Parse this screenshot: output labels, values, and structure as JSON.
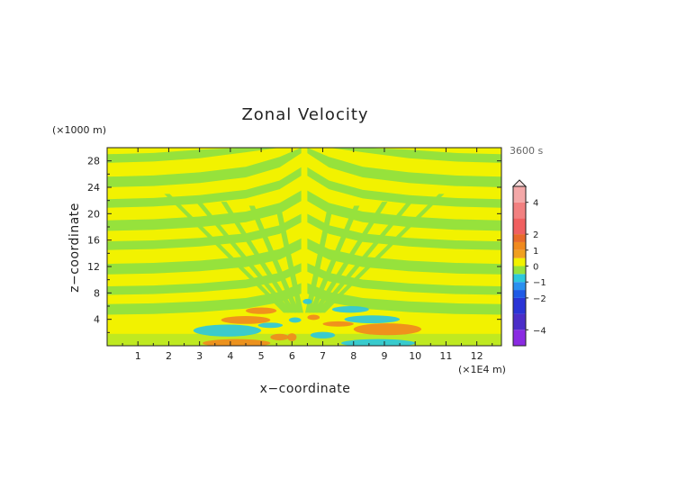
{
  "chart_data": {
    "type": "heatmap",
    "title": "Zonal Velocity",
    "xlabel": "x−coordinate",
    "ylabel": "z−coordinate",
    "x_unit": "(×1E4 m)",
    "y_unit": "(×1000 m)",
    "time_label": "3600 s",
    "xlim": [
      0,
      12.8
    ],
    "ylim": [
      0,
      30
    ],
    "x_ticks": [
      1,
      2,
      3,
      4,
      5,
      6,
      7,
      8,
      9,
      10,
      11,
      12
    ],
    "y_ticks": [
      4,
      8,
      12,
      16,
      20,
      24,
      28
    ],
    "colorbar": {
      "tick_labels": [
        "4",
        "2",
        "1",
        "0",
        "−1",
        "−2",
        "−4"
      ],
      "tick_values": [
        4,
        2,
        1,
        0,
        -1,
        -2,
        -4
      ],
      "levels": [
        -5,
        -4,
        -3,
        -2,
        -1.5,
        -1,
        -0.5,
        0,
        0.5,
        1,
        1.5,
        2,
        3,
        4,
        5
      ],
      "colors": [
        "#8a2be2",
        "#4b2ec8",
        "#2a34d6",
        "#1f5ae6",
        "#2a90f0",
        "#2cc8dc",
        "#96e23c",
        "#f2f200",
        "#f0a020",
        "#f08a1e",
        "#e86a2a",
        "#f06060",
        "#f28080",
        "#f4a8a8"
      ]
    },
    "field_features": {
      "background_levels": [
        "#96e23c",
        "#f2f200"
      ],
      "positive_lobes_color": "#f08a1e",
      "negative_lobes_color": "#2cc8dc",
      "source_center_x": 6.4
    }
  }
}
